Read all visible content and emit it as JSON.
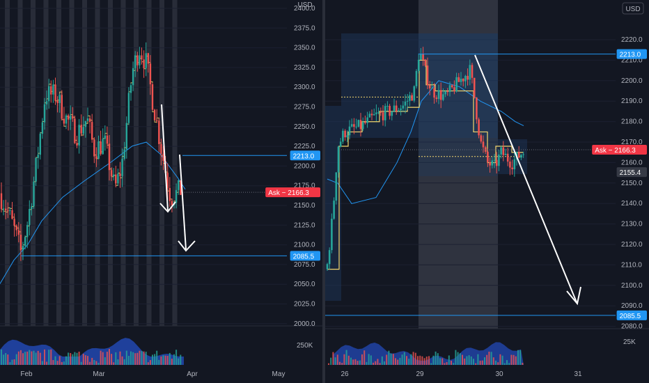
{
  "panes": [
    {
      "id": "left",
      "currency": "USD",
      "price_axis": {
        "min": 2000,
        "max": 2400,
        "ticks": [
          "2400.0",
          "2375.0",
          "2350.0",
          "2325.0",
          "2300.0",
          "2275.0",
          "2250.0",
          "2225.0",
          "2200.0",
          "2175.0",
          "2150.0",
          "2125.0",
          "2100.0",
          "2075.0",
          "2050.0",
          "2025.0",
          "2000.0"
        ]
      },
      "time_labels": [
        "Feb",
        "Mar",
        "Apr",
        "May"
      ],
      "price_tags": [
        {
          "text": "2213.0",
          "value": 2213.0,
          "style": "blue"
        },
        {
          "text": "Ask − 2166.3",
          "value": 2166.3,
          "style": "red"
        },
        {
          "text": "2085.5",
          "value": 2085.5,
          "style": "blue"
        }
      ],
      "volume_tick": "250K",
      "colors": {
        "up": "#26a69a",
        "down": "#ef5350",
        "line": "#2196f3",
        "band": "#3a3e4a"
      }
    },
    {
      "id": "right",
      "currency": "USD",
      "price_axis": {
        "min": 2080,
        "max": 2230,
        "ticks": [
          "2220.0",
          "2210.0",
          "2200.0",
          "2190.0",
          "2180.0",
          "2170.0",
          "2160.0",
          "2150.0",
          "2140.0",
          "2130.0",
          "2120.0",
          "2110.0",
          "2100.0",
          "2090.0",
          "2080.0"
        ]
      },
      "time_labels": [
        "26",
        "29",
        "30",
        "31"
      ],
      "price_tags": [
        {
          "text": "2213.0",
          "value": 2213.0,
          "style": "blue"
        },
        {
          "text": "Ask − 2166.3",
          "value": 2166.3,
          "style": "red"
        },
        {
          "text": "2155.4",
          "value": 2155.4,
          "style": "dark"
        },
        {
          "text": "2085.5",
          "value": 2085.5,
          "style": "blue"
        }
      ],
      "volume_tick": "25K",
      "colors": {
        "up": "#26a69a",
        "down": "#ef5350",
        "line": "#2196f3",
        "band": "#3a3e4a"
      }
    }
  ]
}
